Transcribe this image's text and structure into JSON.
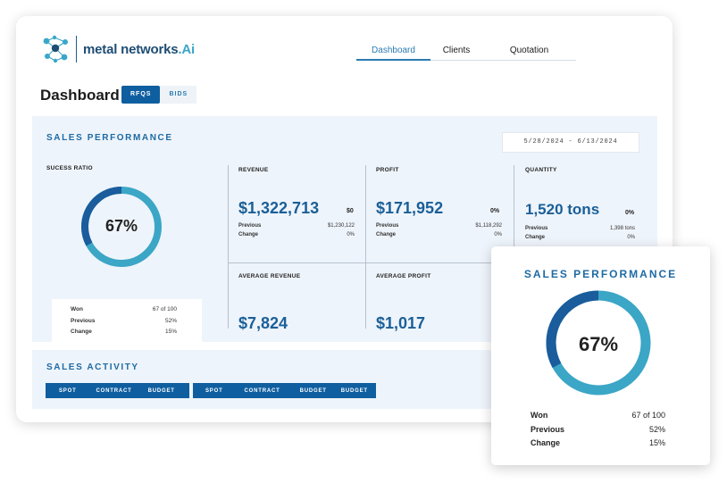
{
  "brand": {
    "name": "metal networks",
    "suffix": ".Ai"
  },
  "nav": {
    "tabs": [
      {
        "label": "Dashboard",
        "active": true
      },
      {
        "label": "Clients"
      },
      {
        "label": "Quotation"
      }
    ]
  },
  "page": {
    "title": "Dashboard"
  },
  "toggle": {
    "rfqs": "RFQS",
    "bids": "BIDS"
  },
  "sales_performance": {
    "title": "SALES PERFORMANCE",
    "date_range": "5/28/2024 - 6/13/2024",
    "success": {
      "label": "SUCESS RATIO",
      "percent_text": "67%",
      "ratio": 0.67,
      "won_label": "Won",
      "won_value": "67 of 100",
      "previous_label": "Previous",
      "previous_value": "52%",
      "change_label": "Change",
      "change_value": "15%"
    },
    "revenue": {
      "label": "REVENUE",
      "value": "$1,322,713",
      "delta": "$0",
      "previous_label": "Previous",
      "previous_value": "$1,230,122",
      "change_label": "Change",
      "change_value": "0%"
    },
    "profit": {
      "label": "PROFIT",
      "value": "$171,952",
      "delta": "0%",
      "previous_label": "Previous",
      "previous_value": "$1,118,292",
      "change_label": "Change",
      "change_value": "0%"
    },
    "quantity": {
      "label": "QUANTITY",
      "value": "1,520 tons",
      "delta": "0%",
      "previous_label": "Previous",
      "previous_value": "1,398 tons",
      "change_label": "Change",
      "change_value": "0%"
    },
    "avg_revenue": {
      "label": "AVERAGE REVENUE",
      "value": "$7,824"
    },
    "avg_profit": {
      "label": "AVERAGE PROFIT",
      "value": "$1,017"
    }
  },
  "sales_activity": {
    "title": "SALES ACTIVITY",
    "group1": [
      "SPOT",
      "CONTRACT",
      "BUDGET"
    ],
    "group2": [
      "SPOT",
      "CONTRACT",
      "BUDGET",
      "BUDGET"
    ]
  },
  "popup": {
    "title": "SALES PERFORMANCE",
    "percent_text": "67%",
    "ratio": 0.67,
    "won_label": "Won",
    "won_value": "67 of 100",
    "previous_label": "Previous",
    "previous_value": "52%",
    "change_label": "Change",
    "change_value": "15%"
  },
  "colors": {
    "primary": "#0f5fa0",
    "ring_light": "#3ba6c6",
    "ring_dark": "#1a5c9c",
    "panel": "#eef4fb"
  }
}
